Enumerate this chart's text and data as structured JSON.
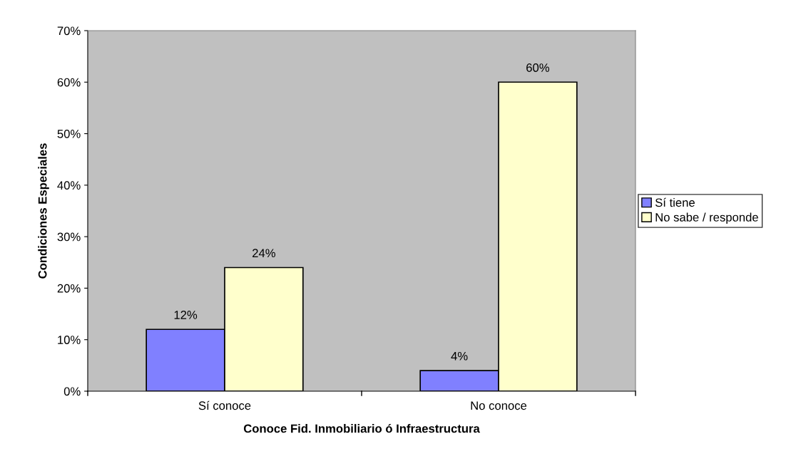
{
  "chart_data": {
    "type": "bar",
    "xlabel": "Conoce Fid. Inmobiliario ó Infraestructura",
    "ylabel": "Condiciones Especiales",
    "categories": [
      "Sí conoce",
      "No conoce"
    ],
    "series": [
      {
        "name": "Sí tiene",
        "color": "#8080ff",
        "values": [
          12,
          4
        ],
        "value_labels": [
          "12%",
          "4%"
        ]
      },
      {
        "name": "No sabe / responde",
        "color": "#ffffcc",
        "values": [
          24,
          60
        ],
        "value_labels": [
          "24%",
          "60%"
        ]
      }
    ],
    "ylim": [
      0,
      70
    ],
    "yticks": [
      {
        "value": 0,
        "label": "0%"
      },
      {
        "value": 10,
        "label": "10%"
      },
      {
        "value": 20,
        "label": "20%"
      },
      {
        "value": 30,
        "label": "30%"
      },
      {
        "value": 40,
        "label": "40%"
      },
      {
        "value": 50,
        "label": "50%"
      },
      {
        "value": 60,
        "label": "60%"
      },
      {
        "value": 70,
        "label": "70%"
      }
    ],
    "grid": false,
    "legend": "right"
  }
}
